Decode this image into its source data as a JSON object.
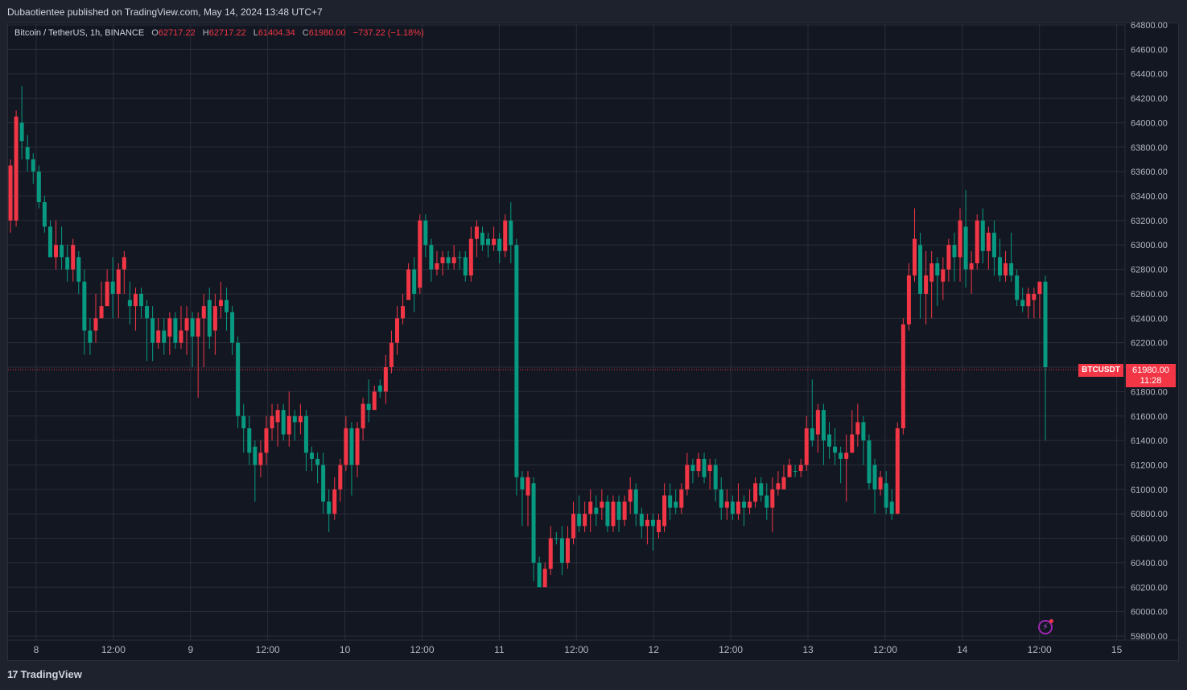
{
  "header": {
    "published": "Dubaotientee published on TradingView.com, May 14, 2024 13:48 UTC+7"
  },
  "legend": {
    "symbol": "Bitcoin / TetherUS, 1h, BINANCE",
    "o_label": "O",
    "o": "62717.22",
    "h_label": "H",
    "h": "62717.22",
    "l_label": "L",
    "l": "61404.34",
    "c_label": "C",
    "c": "61980.00",
    "change": "−737.22 (−1.18%)"
  },
  "price_tag": {
    "symbol": "BTCUSDT",
    "price": "61980.00",
    "countdown": "11:28"
  },
  "footer": {
    "brand": "TradingView",
    "logo": "tradingview-logo-icon"
  },
  "colors": {
    "up": "#089981",
    "down": "#f23645",
    "bg": "#131722",
    "grid": "#2a2e39",
    "axis_text": "#b2b5be"
  },
  "chart_data": {
    "type": "candlestick",
    "symbol": "BTCUSDT",
    "interval": "1h",
    "ylim": [
      59800,
      64800
    ],
    "y_ticks": [
      "64800.00",
      "64600.00",
      "64400.00",
      "64200.00",
      "64000.00",
      "63800.00",
      "63600.00",
      "63400.00",
      "63200.00",
      "63000.00",
      "62800.00",
      "62600.00",
      "62400.00",
      "62200.00",
      "62000.00",
      "61800.00",
      "61600.00",
      "61400.00",
      "61200.00",
      "61000.00",
      "60800.00",
      "60600.00",
      "60400.00",
      "60200.00",
      "60000.00",
      "59800.00"
    ],
    "x_ticks": [
      "8",
      "12:00",
      "9",
      "12:00",
      "10",
      "12:00",
      "11",
      "12:00",
      "12",
      "12:00",
      "13",
      "12:00",
      "14",
      "12:00",
      "15"
    ],
    "last_price": 61980.0,
    "candles": [
      [
        63650,
        63200,
        63700,
        63100
      ],
      [
        64050,
        63200,
        64100,
        63150
      ],
      [
        63850,
        64000,
        64300,
        63700
      ],
      [
        63700,
        63800,
        63900,
        63600
      ],
      [
        63600,
        63700,
        63750,
        63500
      ],
      [
        63350,
        63600,
        63650,
        63300
      ],
      [
        63150,
        63350,
        63400,
        63100
      ],
      [
        62900,
        63150,
        63200,
        62900
      ],
      [
        63000,
        62900,
        63200,
        62800
      ],
      [
        62900,
        63000,
        63150,
        62800
      ],
      [
        62800,
        62900,
        63000,
        62700
      ],
      [
        63000,
        62800,
        63050,
        62700
      ],
      [
        62700,
        62900,
        62950,
        62600
      ],
      [
        62300,
        62700,
        62800,
        62100
      ],
      [
        62200,
        62300,
        62400,
        62100
      ],
      [
        62400,
        62300,
        62600,
        62200
      ],
      [
        62500,
        62400,
        62700,
        62400
      ],
      [
        62700,
        62500,
        62800,
        62500
      ],
      [
        62600,
        62700,
        62900,
        62400
      ],
      [
        62800,
        62600,
        62850,
        62400
      ],
      [
        62900,
        62800,
        62950,
        62600
      ],
      [
        62500,
        62550,
        62700,
        62350
      ],
      [
        62600,
        62500,
        62650,
        62300
      ],
      [
        62500,
        62600,
        62650,
        62400
      ],
      [
        62400,
        62500,
        62550,
        62050
      ],
      [
        62200,
        62400,
        62500,
        62050
      ],
      [
        62300,
        62200,
        62400,
        62150
      ],
      [
        62200,
        62300,
        62400,
        62100
      ],
      [
        62400,
        62250,
        62450,
        62100
      ],
      [
        62200,
        62400,
        62450,
        62150
      ],
      [
        62300,
        62200,
        62500,
        62150
      ],
      [
        62400,
        62300,
        62500,
        62100
      ],
      [
        62250,
        62400,
        62450,
        62000
      ],
      [
        62400,
        62250,
        62450,
        61750
      ],
      [
        62500,
        62400,
        62600,
        62000
      ],
      [
        62250,
        62550,
        62650,
        62150
      ],
      [
        62500,
        62300,
        62600,
        62100
      ],
      [
        62550,
        62500,
        62700,
        62400
      ],
      [
        62450,
        62550,
        62650,
        62300
      ],
      [
        62200,
        62450,
        62500,
        62100
      ],
      [
        61600,
        62200,
        62250,
        61500
      ],
      [
        61500,
        61600,
        61700,
        61300
      ],
      [
        61300,
        61500,
        61600,
        61200
      ],
      [
        61200,
        61350,
        61400,
        60900
      ],
      [
        61300,
        61200,
        61400,
        61100
      ],
      [
        61500,
        61300,
        61600,
        61200
      ],
      [
        61600,
        61500,
        61700,
        61400
      ],
      [
        61650,
        61550,
        61700,
        61350
      ],
      [
        61450,
        61650,
        61700,
        61400
      ],
      [
        61600,
        61450,
        61800,
        61350
      ],
      [
        61550,
        61600,
        61650,
        61400
      ],
      [
        61600,
        61550,
        61700,
        61450
      ],
      [
        61300,
        61600,
        61650,
        61150
      ],
      [
        61250,
        61300,
        61350,
        61150
      ],
      [
        61200,
        61250,
        61300,
        61050
      ],
      [
        60900,
        61200,
        61300,
        60800
      ],
      [
        60800,
        60900,
        61000,
        60650
      ],
      [
        61000,
        60800,
        61100,
        60750
      ],
      [
        61200,
        61000,
        61250,
        60900
      ],
      [
        61500,
        61200,
        61600,
        61150
      ],
      [
        61200,
        61500,
        61550,
        60950
      ],
      [
        61500,
        61200,
        61550,
        61100
      ],
      [
        61700,
        61500,
        61750,
        61400
      ],
      [
        61650,
        61700,
        61900,
        61550
      ],
      [
        61800,
        61650,
        61850,
        61700
      ],
      [
        61800,
        61850,
        61900,
        61750
      ],
      [
        62000,
        61800,
        62100,
        61700
      ],
      [
        62200,
        62000,
        62300,
        61950
      ],
      [
        62400,
        62200,
        62500,
        62100
      ],
      [
        62500,
        62400,
        62600,
        62350
      ],
      [
        62800,
        62550,
        62850,
        62550
      ],
      [
        62600,
        62800,
        62900,
        62450
      ],
      [
        63200,
        62650,
        63250,
        62600
      ],
      [
        63000,
        63200,
        63250,
        62900
      ],
      [
        62800,
        63000,
        63050,
        62700
      ],
      [
        62850,
        62800,
        62950,
        62750
      ],
      [
        62900,
        62850,
        62950,
        62750
      ],
      [
        62850,
        62900,
        62950,
        62800
      ],
      [
        62900,
        62850,
        63000,
        62800
      ],
      [
        62900,
        62900,
        62950,
        62800
      ],
      [
        62750,
        62900,
        62950,
        62700
      ],
      [
        63050,
        62750,
        63150,
        62700
      ],
      [
        63150,
        63050,
        63200,
        62900
      ],
      [
        63000,
        63100,
        63150,
        62950
      ],
      [
        63000,
        63050,
        63100,
        62900
      ],
      [
        63050,
        63000,
        63150,
        62950
      ],
      [
        62950,
        63050,
        63100,
        62850
      ],
      [
        63200,
        62950,
        63250,
        62900
      ],
      [
        63000,
        63200,
        63350,
        62850
      ],
      [
        61100,
        63000,
        63050,
        60950
      ],
      [
        61000,
        61100,
        61150,
        60700
      ],
      [
        61100,
        60950,
        61150,
        60700
      ],
      [
        60400,
        61050,
        61100,
        60250
      ],
      [
        60200,
        60400,
        60450,
        60200
      ],
      [
        60350,
        60200,
        60400,
        60200
      ],
      [
        60600,
        60350,
        60700,
        60300
      ],
      [
        60600,
        60600,
        60650,
        60550
      ],
      [
        60400,
        60600,
        60700,
        60300
      ],
      [
        60600,
        60400,
        60700,
        60350
      ],
      [
        60800,
        60600,
        60900,
        60550
      ],
      [
        60700,
        60800,
        60950,
        60650
      ],
      [
        60800,
        60700,
        60900,
        60650
      ],
      [
        60900,
        60800,
        61000,
        60650
      ],
      [
        60800,
        60850,
        60950,
        60700
      ],
      [
        60900,
        60850,
        61000,
        60750
      ],
      [
        60700,
        60900,
        60950,
        60650
      ],
      [
        60900,
        60700,
        60950,
        60650
      ],
      [
        60750,
        60900,
        60950,
        60650
      ],
      [
        60900,
        60750,
        60950,
        60700
      ],
      [
        61000,
        60900,
        61100,
        60800
      ],
      [
        60800,
        61000,
        61050,
        60700
      ],
      [
        60700,
        60800,
        60850,
        60600
      ],
      [
        60750,
        60700,
        60800,
        60550
      ],
      [
        60700,
        60750,
        60800,
        60500
      ],
      [
        60750,
        60650,
        60800,
        60600
      ],
      [
        60950,
        60700,
        61050,
        60650
      ],
      [
        60850,
        60950,
        61050,
        60750
      ],
      [
        60850,
        60900,
        61000,
        60800
      ],
      [
        61000,
        60850,
        61050,
        60800
      ],
      [
        61200,
        61000,
        61300,
        60950
      ],
      [
        61150,
        61200,
        61250,
        61050
      ],
      [
        61250,
        61150,
        61300,
        61100
      ],
      [
        61100,
        61250,
        61300,
        61050
      ],
      [
        61200,
        61150,
        61250,
        61000
      ],
      [
        61000,
        61200,
        61250,
        60900
      ],
      [
        60850,
        61000,
        61100,
        60750
      ],
      [
        60900,
        60850,
        61000,
        60750
      ],
      [
        60800,
        60900,
        60950,
        60750
      ],
      [
        60900,
        60800,
        61050,
        60750
      ],
      [
        60850,
        60900,
        60950,
        60700
      ],
      [
        60900,
        60850,
        61000,
        60800
      ],
      [
        61050,
        60900,
        61100,
        60850
      ],
      [
        60950,
        61050,
        61100,
        60900
      ],
      [
        60850,
        60950,
        61050,
        60750
      ],
      [
        61000,
        60850,
        61100,
        60650
      ],
      [
        61050,
        61000,
        61150,
        60950
      ],
      [
        61100,
        61000,
        61200,
        61050
      ],
      [
        61200,
        61100,
        61250,
        61100
      ],
      [
        61150,
        61150,
        61200,
        61100
      ],
      [
        61200,
        61150,
        61250,
        61100
      ],
      [
        61500,
        61200,
        61600,
        61150
      ],
      [
        61400,
        61500,
        61900,
        61350
      ],
      [
        61650,
        61450,
        61700,
        61300
      ],
      [
        61400,
        61650,
        61700,
        61200
      ],
      [
        61350,
        61450,
        61550,
        61250
      ],
      [
        61300,
        61350,
        61500,
        61200
      ],
      [
        61250,
        61300,
        61350,
        61050
      ],
      [
        61300,
        61250,
        61450,
        60900
      ],
      [
        61450,
        61300,
        61650,
        61300
      ],
      [
        61550,
        61450,
        61700,
        61350
      ],
      [
        61400,
        61550,
        61600,
        61200
      ],
      [
        61050,
        61400,
        61450,
        61000
      ],
      [
        61000,
        61200,
        61250,
        60800
      ],
      [
        61100,
        61000,
        61150,
        60950
      ],
      [
        60850,
        61050,
        61150,
        60800
      ],
      [
        60800,
        60900,
        61000,
        60750
      ],
      [
        61500,
        60800,
        61550,
        60800
      ],
      [
        62350,
        61500,
        62400,
        61450
      ],
      [
        62750,
        62350,
        62850,
        62300
      ],
      [
        63050,
        62750,
        63300,
        62700
      ],
      [
        62600,
        63000,
        63100,
        62400
      ],
      [
        62750,
        62600,
        62950,
        62350
      ],
      [
        62850,
        62700,
        62950,
        62400
      ],
      [
        62750,
        62850,
        62900,
        62500
      ],
      [
        62800,
        62700,
        62900,
        62550
      ],
      [
        63000,
        62800,
        63050,
        62700
      ],
      [
        62900,
        63000,
        63100,
        62700
      ],
      [
        63200,
        62900,
        63300,
        62700
      ],
      [
        62800,
        63150,
        63450,
        62650
      ],
      [
        62850,
        62800,
        62950,
        62600
      ],
      [
        63200,
        62850,
        63250,
        62800
      ],
      [
        62950,
        63200,
        63300,
        62850
      ],
      [
        63100,
        62950,
        63150,
        62800
      ],
      [
        62900,
        63100,
        63200,
        62750
      ],
      [
        62750,
        62900,
        63050,
        62700
      ],
      [
        62850,
        62750,
        62950,
        62700
      ],
      [
        62750,
        62850,
        63100,
        62700
      ],
      [
        62550,
        62750,
        62800,
        62500
      ],
      [
        62500,
        62550,
        62650,
        62450
      ],
      [
        62600,
        62500,
        62650,
        62400
      ],
      [
        62600,
        62550,
        62650,
        62400
      ],
      [
        62700,
        62600,
        62700,
        62400
      ],
      [
        62000,
        62700,
        62750,
        61400
      ]
    ]
  }
}
